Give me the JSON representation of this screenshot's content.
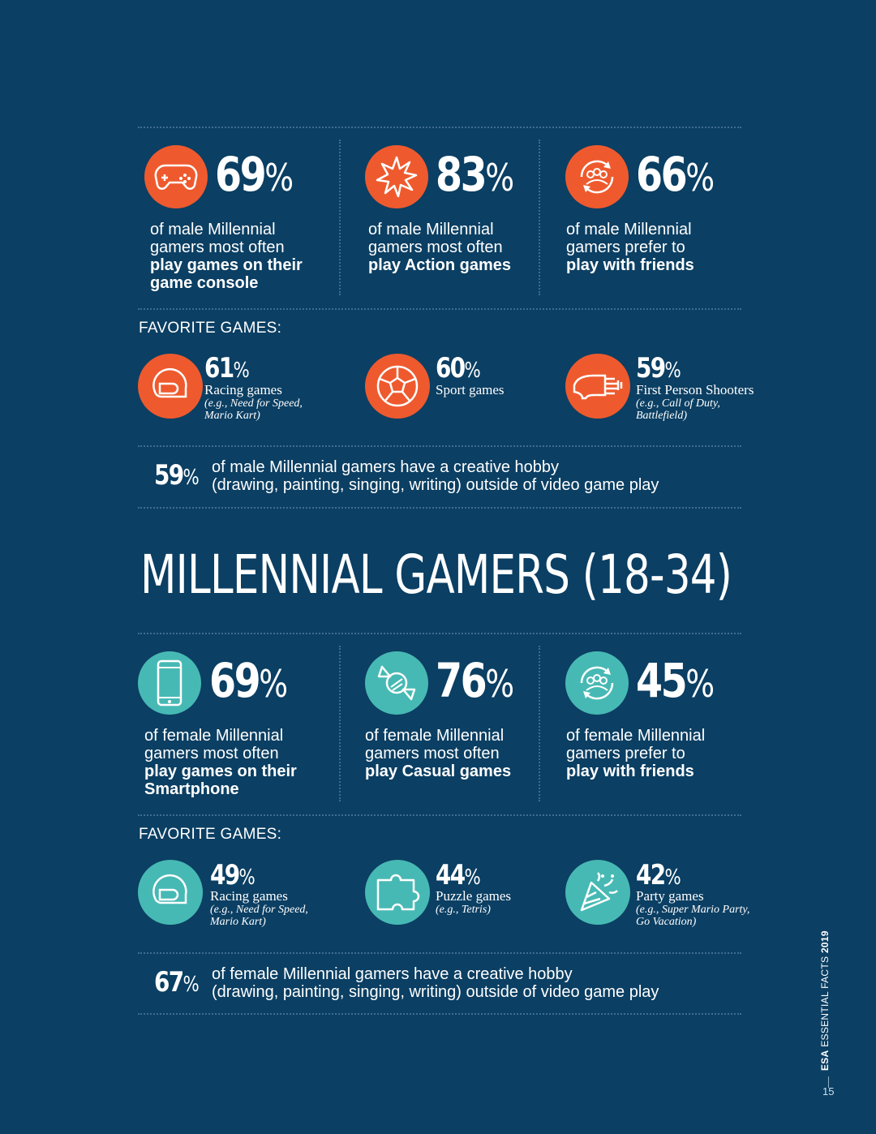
{
  "male": {
    "stats": [
      {
        "value": "69",
        "unit": "%",
        "line1": "of male Millennial",
        "line2": "gamers most often",
        "bold1": "play games on their",
        "bold2": "game console",
        "icon": "gamepad-icon"
      },
      {
        "value": "83",
        "unit": "%",
        "line1": "of male Millennial",
        "line2": "gamers most often",
        "bold1": "play Action games",
        "bold2": "",
        "icon": "explosion-icon"
      },
      {
        "value": "66",
        "unit": "%",
        "line1": "of male Millennial",
        "line2": "gamers prefer to",
        "bold1": "play with friends",
        "bold2": "",
        "icon": "friends-icon"
      }
    ],
    "favorite_label": "FAVORITE GAMES:",
    "games": [
      {
        "value": "61",
        "unit": "%",
        "name": "Racing games",
        "ex1": "(e.g., Need for Speed,",
        "ex2": "Mario Kart)",
        "icon": "helmet-icon"
      },
      {
        "value": "60",
        "unit": "%",
        "name": "Sport games",
        "ex1": "",
        "ex2": "",
        "icon": "soccer-ball-icon"
      },
      {
        "value": "59",
        "unit": "%",
        "name": "First Person Shooters",
        "ex1": "(e.g., Call of Duty,",
        "ex2": "Battlefield)",
        "icon": "blaster-icon"
      }
    ],
    "creative": {
      "value": "59",
      "unit": "%",
      "line1": "of male Millennial gamers have a creative hobby",
      "line2": "(drawing, painting, singing, writing) outside of video game play"
    }
  },
  "heading": "MILLENNIAL GAMERS (18-34)",
  "female": {
    "stats": [
      {
        "value": "69",
        "unit": "%",
        "line1": "of female Millennial",
        "line2": "gamers most often",
        "bold1": "play games on their",
        "bold2": "Smartphone",
        "icon": "smartphone-icon"
      },
      {
        "value": "76",
        "unit": "%",
        "line1": "of female Millennial",
        "line2": "gamers most often",
        "bold1": "play Casual games",
        "bold2": "",
        "icon": "candy-icon"
      },
      {
        "value": "45",
        "unit": "%",
        "line1": "of female Millennial",
        "line2": "gamers prefer to",
        "bold1": "play with friends",
        "bold2": "",
        "icon": "friends-icon"
      }
    ],
    "favorite_label": "FAVORITE GAMES:",
    "games": [
      {
        "value": "49",
        "unit": "%",
        "name": "Racing games",
        "ex1": "(e.g., Need for Speed,",
        "ex2": "Mario Kart)",
        "icon": "helmet-icon"
      },
      {
        "value": "44",
        "unit": "%",
        "name": "Puzzle games",
        "ex1": "(e.g., Tetris)",
        "ex2": "",
        "icon": "puzzle-icon"
      },
      {
        "value": "42",
        "unit": "%",
        "name": "Party games",
        "ex1": "(e.g., Super Mario Party,",
        "ex2": "Go Vacation)",
        "icon": "party-popper-icon"
      }
    ],
    "creative": {
      "value": "67",
      "unit": "%",
      "line1": "of female Millennial gamers have a creative hobby",
      "line2": "(drawing, painting, singing, writing) outside of video game play"
    }
  },
  "footer": {
    "brand": "ESA",
    "title": "ESSENTIAL FACTS",
    "year": "2019",
    "page": "15"
  },
  "colors": {
    "background": "#0b3f63",
    "male_accent": "#ee5a2e",
    "female_accent": "#47b9b4",
    "divider": "#3f6d91"
  }
}
